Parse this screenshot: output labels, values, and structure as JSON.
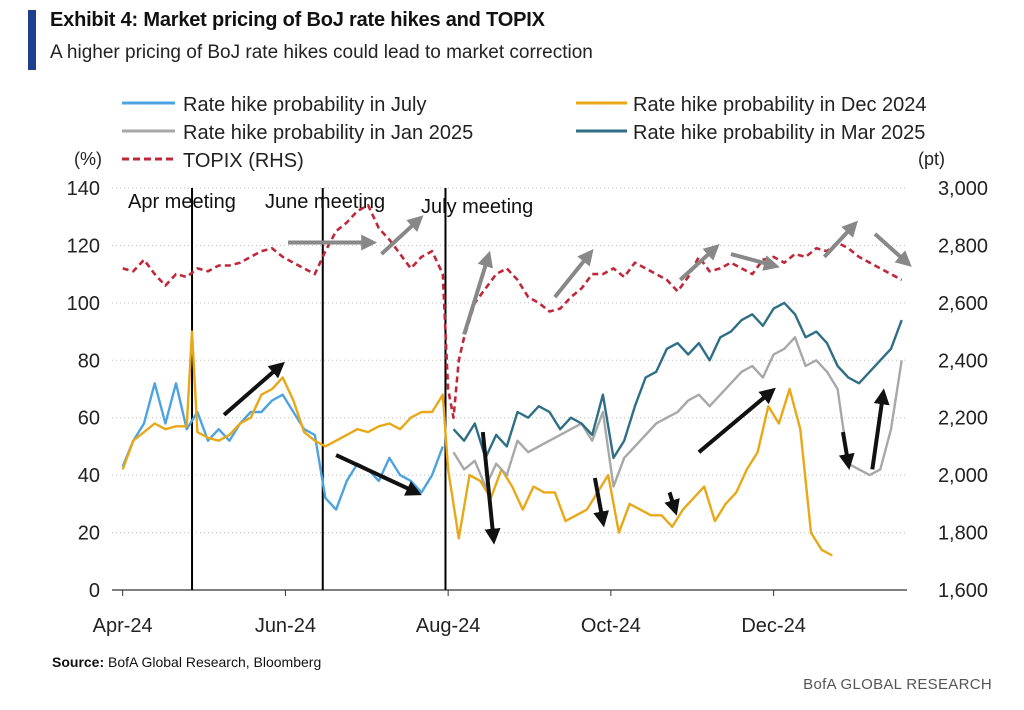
{
  "header": {
    "title": "Exhibit 4: Market pricing of BoJ rate hikes and TOPIX",
    "subtitle": "A higher pricing of BoJ rate hikes could lead to market correction"
  },
  "footer": {
    "source_label": "Source:",
    "source_text": "BofA Global Research, Bloomberg",
    "brand": "BofA GLOBAL RESEARCH"
  },
  "chart_data": {
    "type": "line",
    "left_axis": {
      "unit": "(%)",
      "min": 0,
      "max": 140,
      "ticks": [
        "0",
        "20",
        "40",
        "60",
        "80",
        "100",
        "120",
        "140"
      ]
    },
    "right_axis": {
      "unit": "(pt)",
      "min": 1600,
      "max": 3000,
      "ticks": [
        "1,600",
        "1,800",
        "2,000",
        "2,200",
        "2,400",
        "2,600",
        "2,800",
        "3,000"
      ]
    },
    "x_ticks": [
      "Apr-24",
      "Jun-24",
      "Aug-24",
      "Oct-24",
      "Dec-24"
    ],
    "x_tick_days": [
      0,
      61,
      122,
      183,
      244
    ],
    "x_range": [
      -4,
      294
    ],
    "meetings": [
      {
        "label": "Apr meeting",
        "day": 26
      },
      {
        "label": "June meeting",
        "day": 75
      },
      {
        "label": "July meeting",
        "day": 121
      }
    ],
    "series": [
      {
        "name": "Rate hike probability in July",
        "color": "#4da3e0",
        "axis": "left",
        "x": [
          0,
          4,
          8,
          12,
          16,
          20,
          24,
          28,
          32,
          36,
          40,
          44,
          48,
          52,
          56,
          60,
          64,
          68,
          72,
          76,
          80,
          84,
          88,
          92,
          96,
          100,
          104,
          108,
          112,
          116,
          120
        ],
        "values": [
          43,
          52,
          58,
          72,
          58,
          72,
          56,
          62,
          52,
          56,
          52,
          58,
          62,
          62,
          66,
          68,
          62,
          56,
          54,
          32,
          28,
          38,
          44,
          42,
          38,
          46,
          40,
          38,
          34,
          40,
          50
        ]
      },
      {
        "name": "Rate hike probability in Dec 2024",
        "color": "#e8a817",
        "axis": "left",
        "x": [
          0,
          4,
          8,
          12,
          16,
          20,
          24,
          26,
          28,
          32,
          36,
          40,
          44,
          48,
          52,
          56,
          60,
          64,
          68,
          72,
          76,
          80,
          84,
          88,
          92,
          96,
          100,
          104,
          108,
          112,
          116,
          120,
          122,
          126,
          130,
          134,
          138,
          142,
          146,
          150,
          154,
          158,
          162,
          166,
          170,
          174,
          178,
          182,
          186,
          190,
          194,
          198,
          202,
          206,
          210,
          214,
          218,
          222,
          226,
          230,
          234,
          238,
          242,
          246,
          250,
          254,
          258,
          262,
          266
        ],
        "values": [
          42,
          52,
          55,
          58,
          56,
          57,
          57,
          90,
          55,
          53,
          52,
          54,
          58,
          60,
          68,
          70,
          74,
          66,
          55,
          52,
          50,
          52,
          54,
          56,
          55,
          57,
          58,
          56,
          60,
          62,
          62,
          68,
          42,
          18,
          40,
          38,
          32,
          42,
          36,
          28,
          36,
          34,
          34,
          24,
          26,
          28,
          34,
          40,
          20,
          30,
          28,
          26,
          26,
          22,
          28,
          32,
          36,
          24,
          30,
          34,
          42,
          48,
          64,
          58,
          70,
          56,
          20,
          14,
          12
        ]
      },
      {
        "name": "Rate hike probability in Jan 2025",
        "color": "#a8a8a8",
        "axis": "left",
        "x": [
          124,
          128,
          132,
          136,
          140,
          144,
          148,
          152,
          156,
          160,
          164,
          168,
          172,
          176,
          180,
          184,
          188,
          192,
          196,
          200,
          204,
          208,
          212,
          216,
          220,
          224,
          228,
          232,
          236,
          240,
          244,
          248,
          252,
          256,
          260,
          264,
          268,
          272,
          276,
          280,
          284,
          288,
          292
        ],
        "values": [
          48,
          42,
          45,
          36,
          44,
          40,
          52,
          48,
          50,
          52,
          54,
          56,
          58,
          52,
          62,
          36,
          46,
          50,
          54,
          58,
          60,
          62,
          66,
          68,
          64,
          68,
          72,
          76,
          78,
          74,
          82,
          84,
          88,
          78,
          80,
          76,
          70,
          44,
          42,
          40,
          42,
          56,
          80
        ]
      },
      {
        "name": "Rate hike probability in Mar 2025",
        "color": "#2e6f86",
        "axis": "left",
        "x": [
          124,
          128,
          132,
          136,
          140,
          144,
          148,
          152,
          156,
          160,
          164,
          168,
          172,
          176,
          180,
          184,
          188,
          192,
          196,
          200,
          204,
          208,
          212,
          216,
          220,
          224,
          228,
          232,
          236,
          240,
          244,
          248,
          252,
          256,
          260,
          264,
          268,
          272,
          276,
          280,
          284,
          288,
          292
        ],
        "values": [
          56,
          52,
          58,
          46,
          54,
          50,
          62,
          60,
          64,
          62,
          56,
          60,
          58,
          54,
          68,
          46,
          52,
          64,
          74,
          76,
          84,
          86,
          82,
          86,
          80,
          88,
          90,
          94,
          96,
          92,
          98,
          100,
          96,
          88,
          90,
          86,
          78,
          74,
          72,
          76,
          80,
          84,
          94
        ]
      },
      {
        "name": "TOPIX (RHS)",
        "color": "#c0283a",
        "axis": "right",
        "dashed": true,
        "x": [
          0,
          4,
          8,
          12,
          16,
          20,
          24,
          28,
          32,
          36,
          40,
          44,
          48,
          52,
          56,
          60,
          64,
          68,
          72,
          76,
          80,
          84,
          88,
          92,
          96,
          100,
          104,
          108,
          112,
          116,
          120,
          122,
          124,
          126,
          128,
          132,
          136,
          140,
          144,
          148,
          152,
          156,
          160,
          164,
          168,
          172,
          176,
          180,
          184,
          188,
          192,
          196,
          200,
          204,
          208,
          212,
          216,
          220,
          224,
          228,
          232,
          236,
          240,
          244,
          248,
          252,
          256,
          260,
          264,
          268,
          272,
          276,
          280,
          284,
          288,
          292
        ],
        "values": [
          2720,
          2710,
          2750,
          2700,
          2660,
          2700,
          2690,
          2720,
          2710,
          2730,
          2730,
          2740,
          2760,
          2780,
          2790,
          2760,
          2740,
          2720,
          2700,
          2780,
          2850,
          2880,
          2920,
          2940,
          2860,
          2820,
          2770,
          2720,
          2760,
          2780,
          2700,
          2300,
          2200,
          2400,
          2480,
          2600,
          2650,
          2700,
          2720,
          2680,
          2620,
          2600,
          2570,
          2580,
          2620,
          2650,
          2700,
          2700,
          2720,
          2690,
          2740,
          2720,
          2700,
          2680,
          2640,
          2690,
          2760,
          2710,
          2720,
          2740,
          2720,
          2700,
          2750,
          2760,
          2740,
          2770,
          2760,
          2790,
          2780,
          2810,
          2790,
          2760,
          2740,
          2720,
          2700,
          2680
        ]
      }
    ],
    "arrows": [
      {
        "color": "#888888",
        "from": [
          62,
          121
        ],
        "to": [
          93,
          121
        ]
      },
      {
        "color": "#888888",
        "from": [
          97,
          117
        ],
        "to": [
          111,
          129
        ]
      },
      {
        "color": "#888888",
        "from": [
          128,
          89
        ],
        "to": [
          137,
          116
        ]
      },
      {
        "color": "#888888",
        "from": [
          162,
          102
        ],
        "to": [
          175,
          117
        ]
      },
      {
        "color": "#888888",
        "from": [
          209,
          108
        ],
        "to": [
          222,
          119
        ]
      },
      {
        "color": "#888888",
        "from": [
          228,
          117
        ],
        "to": [
          244,
          113
        ]
      },
      {
        "color": "#888888",
        "from": [
          263,
          116
        ],
        "to": [
          274,
          127
        ]
      },
      {
        "color": "#888888",
        "from": [
          282,
          124
        ],
        "to": [
          294,
          114
        ]
      },
      {
        "color": "#111111",
        "from": [
          38,
          61
        ],
        "to": [
          59,
          78
        ]
      },
      {
        "color": "#111111",
        "from": [
          80,
          47
        ],
        "to": [
          110,
          34
        ]
      },
      {
        "color": "#111111",
        "from": [
          135,
          55
        ],
        "to": [
          139,
          18
        ]
      },
      {
        "color": "#111111",
        "from": [
          177,
          39
        ],
        "to": [
          180,
          24
        ]
      },
      {
        "color": "#111111",
        "from": [
          205,
          34
        ],
        "to": [
          207,
          28
        ]
      },
      {
        "color": "#111111",
        "from": [
          216,
          48
        ],
        "to": [
          243,
          69
        ]
      },
      {
        "color": "#111111",
        "from": [
          270,
          55
        ],
        "to": [
          272,
          44
        ]
      },
      {
        "color": "#111111",
        "from": [
          281,
          42
        ],
        "to": [
          285,
          68
        ]
      }
    ]
  }
}
